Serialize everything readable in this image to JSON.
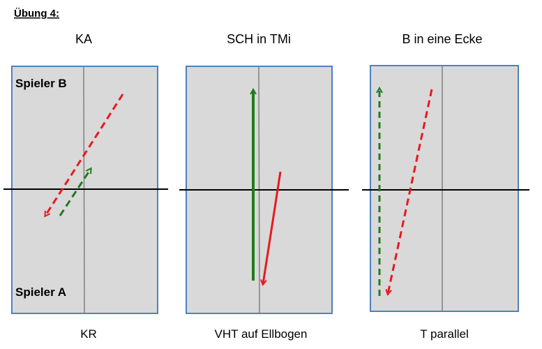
{
  "heading": "Übung 4:",
  "colors": {
    "green": "#217a21",
    "red": "#e8191f",
    "table": "#d9d9d9",
    "border": "#4f81bd"
  },
  "diagrams": [
    {
      "title": "KA",
      "bottom": "KR",
      "player_top": "Spieler B",
      "player_bottom": "Spieler A"
    },
    {
      "title": "SCH in TMi",
      "bottom": "VHT auf Ellbogen"
    },
    {
      "title": "B in eine Ecke",
      "bottom": "T parallel"
    }
  ]
}
